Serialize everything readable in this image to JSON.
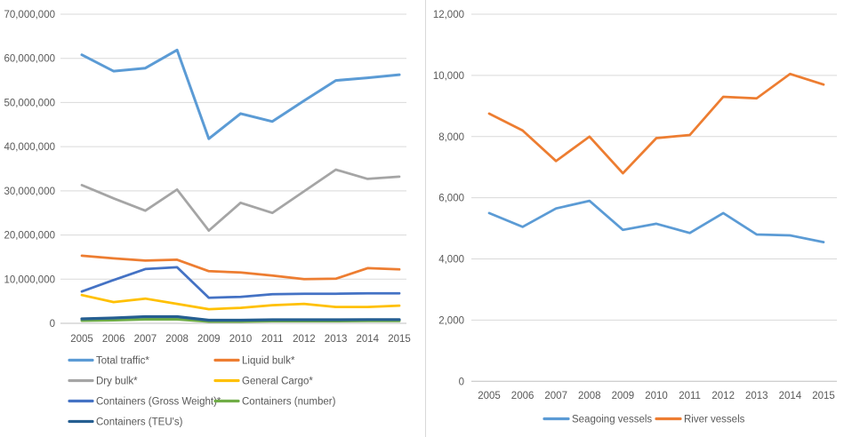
{
  "page": {
    "background": "#ffffff",
    "text_color": "#595959",
    "gridline_color": "#d9d9d9",
    "axis_line_color": "#bfbfbf",
    "divider_color": "#d9d9d9"
  },
  "chart_data": [
    {
      "id": "cargo-traffic",
      "type": "line",
      "title": "",
      "xlabel": "",
      "ylabel": "",
      "grid": true,
      "legend_position": "bottom-left",
      "legend_columns": 2,
      "categories": [
        "2005",
        "2006",
        "2007",
        "2008",
        "2009",
        "2010",
        "2011",
        "2012",
        "2013",
        "2014",
        "2015"
      ],
      "ylim": [
        0,
        70000000
      ],
      "ytick_step": 10000000,
      "ytick_labels": [
        "0",
        "10,000,000",
        "20,000,000",
        "30,000,000",
        "40,000,000",
        "50,000,000",
        "60,000,000",
        "70,000,000"
      ],
      "series": [
        {
          "name": "Total traffic*",
          "color": "#5b9bd5",
          "values": [
            60800000,
            57100000,
            57800000,
            61900000,
            41800000,
            47500000,
            45700000,
            50400000,
            55000000,
            55600000,
            56300000
          ]
        },
        {
          "name": "Liquid bulk*",
          "color": "#ed7d31",
          "values": [
            15300000,
            14700000,
            14200000,
            14400000,
            11800000,
            11500000,
            10800000,
            10000000,
            10100000,
            12500000,
            12200000
          ]
        },
        {
          "name": "Dry bulk*",
          "color": "#a5a5a5",
          "values": [
            31300000,
            28300000,
            25500000,
            30300000,
            21000000,
            27300000,
            25000000,
            29900000,
            34800000,
            32700000,
            33200000
          ]
        },
        {
          "name": "General Cargo*",
          "color": "#ffc000",
          "values": [
            6400000,
            4800000,
            5600000,
            4400000,
            3200000,
            3500000,
            4100000,
            4400000,
            3700000,
            3700000,
            4000000
          ]
        },
        {
          "name": "Containers (Gross Weight)*",
          "color": "#4472c4",
          "values": [
            7200000,
            9800000,
            12300000,
            12700000,
            5800000,
            6000000,
            6600000,
            6700000,
            6700000,
            6800000,
            6800000
          ]
        },
        {
          "name": "Containers (number)",
          "color": "#70ad47",
          "values": [
            600000,
            700000,
            900000,
            900000,
            400000,
            400000,
            500000,
            500000,
            500000,
            550000,
            550000
          ]
        },
        {
          "name": "Containers (TEU's)",
          "color": "#255e91",
          "values": [
            1000000,
            1200000,
            1500000,
            1500000,
            700000,
            700000,
            800000,
            800000,
            800000,
            850000,
            850000
          ]
        }
      ]
    },
    {
      "id": "vessel-traffic",
      "type": "line",
      "title": "",
      "xlabel": "",
      "ylabel": "",
      "grid": true,
      "legend_position": "bottom-center",
      "legend_columns": 2,
      "categories": [
        "2005",
        "2006",
        "2007",
        "2008",
        "2009",
        "2010",
        "2011",
        "2012",
        "2013",
        "2014",
        "2015"
      ],
      "ylim": [
        0,
        12000
      ],
      "ytick_step": 2000,
      "ytick_labels": [
        "0",
        "2,000",
        "4,000",
        "6,000",
        "8,000",
        "10,000",
        "12,000"
      ],
      "series": [
        {
          "name": "Seagoing vessels",
          "color": "#5b9bd5",
          "values": [
            5500,
            5050,
            5650,
            5900,
            4950,
            5150,
            4850,
            5500,
            4800,
            4770,
            4550
          ]
        },
        {
          "name": "River vessels",
          "color": "#ed7d31",
          "values": [
            8750,
            8200,
            7200,
            8000,
            6800,
            7950,
            8050,
            9300,
            9250,
            10050,
            9700
          ]
        }
      ]
    }
  ]
}
